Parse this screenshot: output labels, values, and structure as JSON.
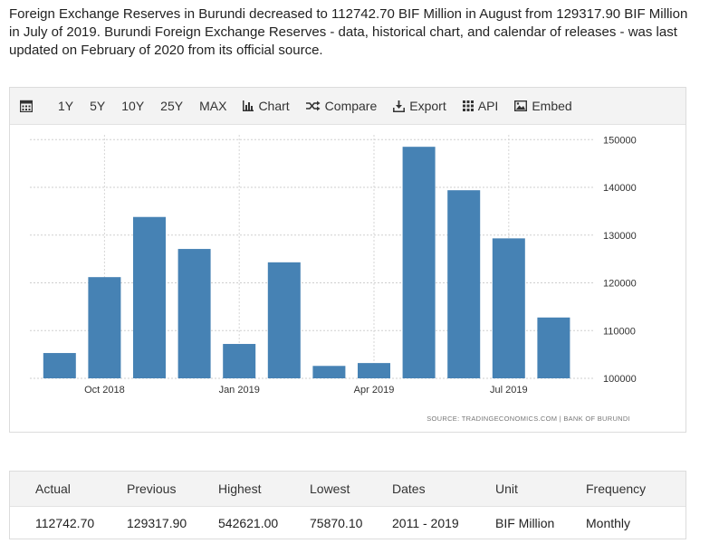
{
  "intro": "Foreign Exchange Reserves in Burundi decreased to 112742.70 BIF Million in August from 129317.90 BIF Million in July of 2019. Burundi Foreign Exchange Reserves - data, historical chart, and calendar of releases - was last updated on February of 2020 from its official source.",
  "toolbar": {
    "items": [
      "1Y",
      "5Y",
      "10Y",
      "25Y",
      "MAX"
    ],
    "chart_label": "Chart",
    "compare_label": "Compare",
    "export_label": "Export",
    "api_label": "API",
    "embed_label": "Embed"
  },
  "source": "SOURCE: TRADINGECONOMICS.COM  |  BANK OF BURUNDI",
  "chart_data": {
    "type": "bar",
    "categories": [
      "2018-09",
      "2018-10",
      "2018-11",
      "2018-12",
      "2019-01",
      "2019-02",
      "2019-03",
      "2019-04",
      "2019-05",
      "2019-06",
      "2019-07",
      "2019-08"
    ],
    "values": [
      105300,
      121200,
      133800,
      127100,
      107200,
      124300,
      102600,
      103200,
      148500,
      139400,
      129317.9,
      112742.7
    ],
    "x_tick_labels": [
      "Oct 2018",
      "Jan 2019",
      "Apr 2019",
      "Jul 2019"
    ],
    "x_tick_positions": [
      1,
      4,
      7,
      10
    ],
    "y_ticks": [
      100000,
      110000,
      120000,
      130000,
      140000,
      150000
    ],
    "ylim": [
      100000,
      151000
    ],
    "title": "",
    "xlabel": "",
    "ylabel": "",
    "color": "#4682b4",
    "grid": true,
    "y_axis_side": "right"
  },
  "stats": {
    "headers": [
      "Actual",
      "Previous",
      "Highest",
      "Lowest",
      "Dates",
      "Unit",
      "Frequency"
    ],
    "values": [
      "112742.70",
      "129317.90",
      "542621.00",
      "75870.10",
      "2011 - 2019",
      "BIF Million",
      "Monthly"
    ]
  }
}
